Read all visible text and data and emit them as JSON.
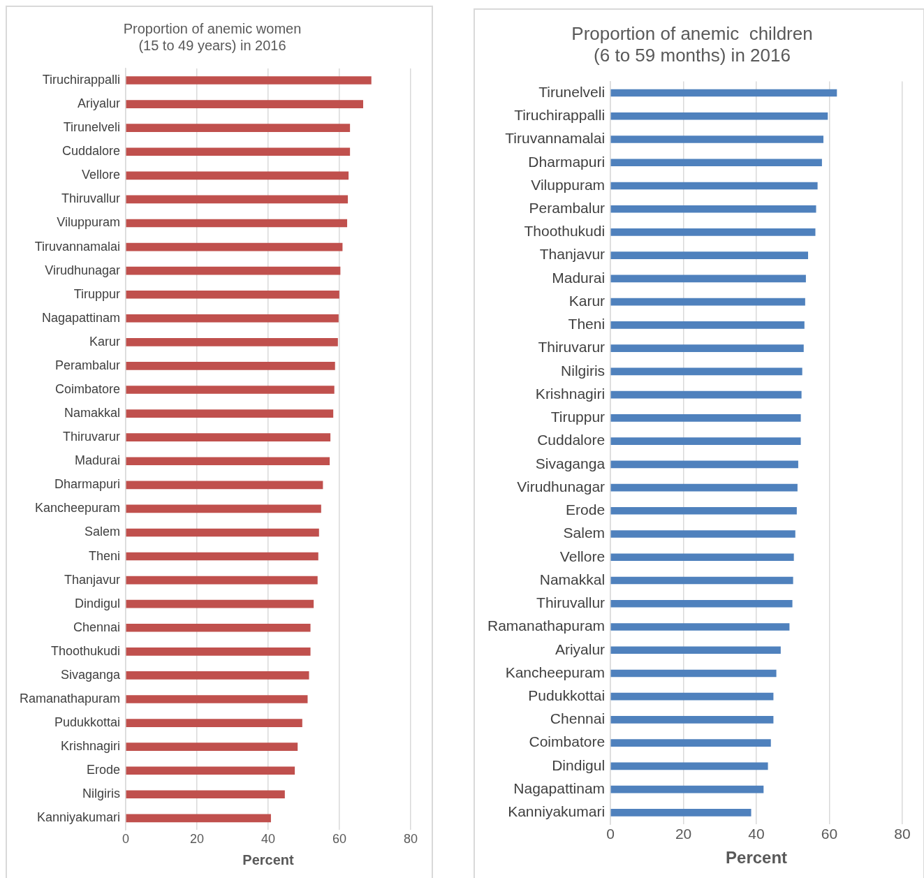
{
  "chart_data": [
    {
      "type": "bar",
      "orientation": "horizontal",
      "title": "Proportion of anemic women\n(15 to 49 years) in 2016",
      "xlabel": "Percent",
      "categories": [
        "Tiruchirappalli",
        "Ariyalur",
        "Tirunelveli",
        "Cuddalore",
        "Vellore",
        "Thiruvallur",
        "Viluppuram",
        "Tiruvannamalai",
        "Virudhunagar",
        "Tiruppur",
        "Nagapattinam",
        "Karur",
        "Perambalur",
        "Coimbatore",
        "Namakkal",
        "Thiruvarur",
        "Madurai",
        "Dharmapuri",
        "Kancheepuram",
        "Salem",
        "Theni",
        "Thanjavur",
        "Dindigul",
        "Chennai",
        "Thoothukudi",
        "Sivaganga",
        "Ramanathapuram",
        "Pudukkottai",
        "Krishnagiri",
        "Erode",
        "Nilgiris",
        "Kanniyakumari"
      ],
      "values": [
        68.9,
        66.6,
        62.9,
        62.9,
        62.5,
        62.3,
        62.1,
        60.8,
        60.2,
        59.9,
        59.7,
        59.5,
        58.7,
        58.5,
        58.2,
        57.4,
        57.2,
        55.3,
        54.8,
        54.2,
        54.0,
        53.8,
        52.7,
        51.8,
        51.8,
        51.4,
        51.0,
        49.5,
        48.2,
        47.4,
        44.6,
        40.7
      ],
      "color": "#c0504d",
      "xlim": [
        0,
        80
      ],
      "xticks": [
        0,
        20,
        40,
        60,
        80
      ],
      "grid": "x"
    },
    {
      "type": "bar",
      "orientation": "horizontal",
      "title": "Proportion of anemic  children\n(6 to 59 months) in 2016",
      "xlabel": "Percent",
      "categories": [
        "Tirunelveli",
        "Tiruchirappalli",
        "Tiruvannamalai",
        "Dharmapuri",
        "Viluppuram",
        "Perambalur",
        "Thoothukudi",
        "Thanjavur",
        "Madurai",
        "Karur",
        "Theni",
        "Thiruvarur",
        "Nilgiris",
        "Krishnagiri",
        "Tiruppur",
        "Cuddalore",
        "Sivaganga",
        "Virudhunagar",
        "Erode",
        "Salem",
        "Vellore",
        "Namakkal",
        "Thiruvallur",
        "Ramanathapuram",
        "Ariyalur",
        "Kancheepuram",
        "Pudukkottai",
        "Chennai",
        "Coimbatore",
        "Dindigul",
        "Nagapattinam",
        "Kanniyakumari"
      ],
      "values": [
        62.0,
        59.5,
        58.3,
        57.9,
        56.7,
        56.3,
        56.1,
        54.1,
        53.5,
        53.3,
        53.1,
        52.9,
        52.5,
        52.3,
        52.1,
        52.1,
        51.4,
        51.2,
        51.0,
        50.6,
        50.2,
        50.0,
        49.8,
        49.0,
        46.6,
        45.4,
        44.6,
        44.6,
        43.9,
        43.1,
        41.9,
        38.5
      ],
      "color": "#4f81bd",
      "xlim": [
        0,
        80
      ],
      "xticks": [
        0,
        20,
        40,
        60,
        80
      ],
      "grid": "x"
    }
  ]
}
